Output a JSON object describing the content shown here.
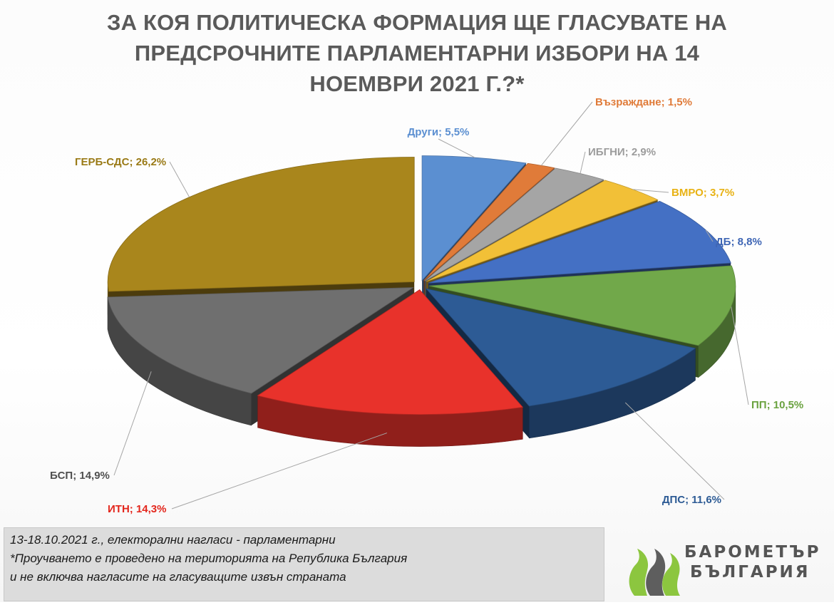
{
  "title": "ЗА КОЯ ПОЛИТИЧЕСКА ФОРМАЦИЯ ЩЕ ГЛАСУВАТЕ НА ПРЕДСРОЧНИТЕ ПАРЛАМЕНТАРНИ ИЗБОРИ НА 14 НОЕМВРИ 2021 Г.?*",
  "chart_data": {
    "type": "pie",
    "title": "ЗА КОЯ ПОЛИТИЧЕСКА ФОРМАЦИЯ ЩЕ ГЛАСУВАТЕ НА ПРЕДСРОЧНИТЕ ПАРЛАМЕНТАРНИ ИЗБОРИ НА 14 НОЕМВРИ 2021 Г.?*",
    "style": "3d-exploded",
    "slices": [
      {
        "label": "Други",
        "value": 5.5,
        "value_text": "5,5%",
        "color": "#5b8fd1",
        "text_color": "#5b8fd1"
      },
      {
        "label": "Възраждане",
        "value": 1.5,
        "value_text": "1,5%",
        "color": "#e07b39",
        "text_color": "#e07b39"
      },
      {
        "label": "ИБГНИ",
        "value": 2.9,
        "value_text": "2,9%",
        "color": "#a5a5a5",
        "text_color": "#9c9c9c"
      },
      {
        "label": "ВМРО",
        "value": 3.7,
        "value_text": "3,7%",
        "color": "#f2c037",
        "text_color": "#e8b214"
      },
      {
        "label": "ДБ",
        "value": 8.8,
        "value_text": "8,8%",
        "color": "#4470c4",
        "text_color": "#3f66b5"
      },
      {
        "label": "ПП",
        "value": 10.5,
        "value_text": "10,5%",
        "color": "#71a84a",
        "text_color": "#6aa23f"
      },
      {
        "label": "ДПС",
        "value": 11.6,
        "value_text": "11,6%",
        "color": "#2d5b95",
        "text_color": "#2d5b95"
      },
      {
        "label": "ИТН",
        "value": 14.3,
        "value_text": "14,3%",
        "color": "#e8322b",
        "text_color": "#e3261c"
      },
      {
        "label": "БСП",
        "value": 14.9,
        "value_text": "14,9%",
        "color": "#6f6f6f",
        "text_color": "#505050"
      },
      {
        "label": "ГЕРБ-СДС",
        "value": 26.2,
        "value_text": "26,2%",
        "color": "#a9861c",
        "text_color": "#9a7a16"
      }
    ]
  },
  "footnote": {
    "line1": "13-18.10.2021  г., електорални нагласи - парламентарни",
    "line2": "*Проучването е проведено на територията на Република България",
    "line3": "и не включва нагласите на гласуващите извън страната"
  },
  "logo": {
    "line1": "БАРОМЕТЪР",
    "line2": "БЪЛГАРИЯ",
    "colors": [
      "#8cc63f",
      "#5a5a5a"
    ]
  }
}
